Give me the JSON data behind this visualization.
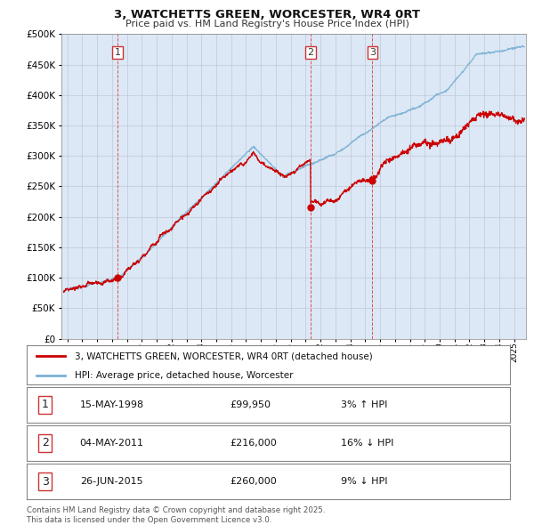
{
  "title_line1": "3, WATCHETTS GREEN, WORCESTER, WR4 0RT",
  "title_line2": "Price paid vs. HM Land Registry's House Price Index (HPI)",
  "ylim": [
    0,
    500000
  ],
  "yticks": [
    0,
    50000,
    100000,
    150000,
    200000,
    250000,
    300000,
    350000,
    400000,
    450000,
    500000
  ],
  "xlim_start": 1994.6,
  "xlim_end": 2025.8,
  "xticks": [
    1995,
    1996,
    1997,
    1998,
    1999,
    2000,
    2001,
    2002,
    2003,
    2004,
    2005,
    2006,
    2007,
    2008,
    2009,
    2010,
    2011,
    2012,
    2013,
    2014,
    2015,
    2016,
    2017,
    2018,
    2019,
    2020,
    2021,
    2022,
    2023,
    2024,
    2025
  ],
  "property_color": "#cc0000",
  "hpi_color": "#7ab0d4",
  "vline_color": "#dd4444",
  "grid_color": "#c0c8d8",
  "plot_bg_color": "#dce8f5",
  "bg_color": "#ffffff",
  "legend_label_property": "3, WATCHETTS GREEN, WORCESTER, WR4 0RT (detached house)",
  "legend_label_hpi": "HPI: Average price, detached house, Worcester",
  "sale_transactions": [
    {
      "date_dec": 1998.37,
      "price": 99950,
      "label": "1"
    },
    {
      "date_dec": 2011.34,
      "price": 216000,
      "label": "2"
    },
    {
      "date_dec": 2015.48,
      "price": 260000,
      "label": "3"
    }
  ],
  "table_rows": [
    {
      "num": "1",
      "date": "15-MAY-1998",
      "price": "£99,950",
      "hpi_note": "3% ↑ HPI"
    },
    {
      "num": "2",
      "date": "04-MAY-2011",
      "price": "£216,000",
      "hpi_note": "16% ↓ HPI"
    },
    {
      "num": "3",
      "date": "26-JUN-2015",
      "price": "£260,000",
      "hpi_note": "9% ↓ HPI"
    }
  ],
  "footnote": "Contains HM Land Registry data © Crown copyright and database right 2025.\nThis data is licensed under the Open Government Licence v3.0.",
  "label_box_color": "#cc3333"
}
